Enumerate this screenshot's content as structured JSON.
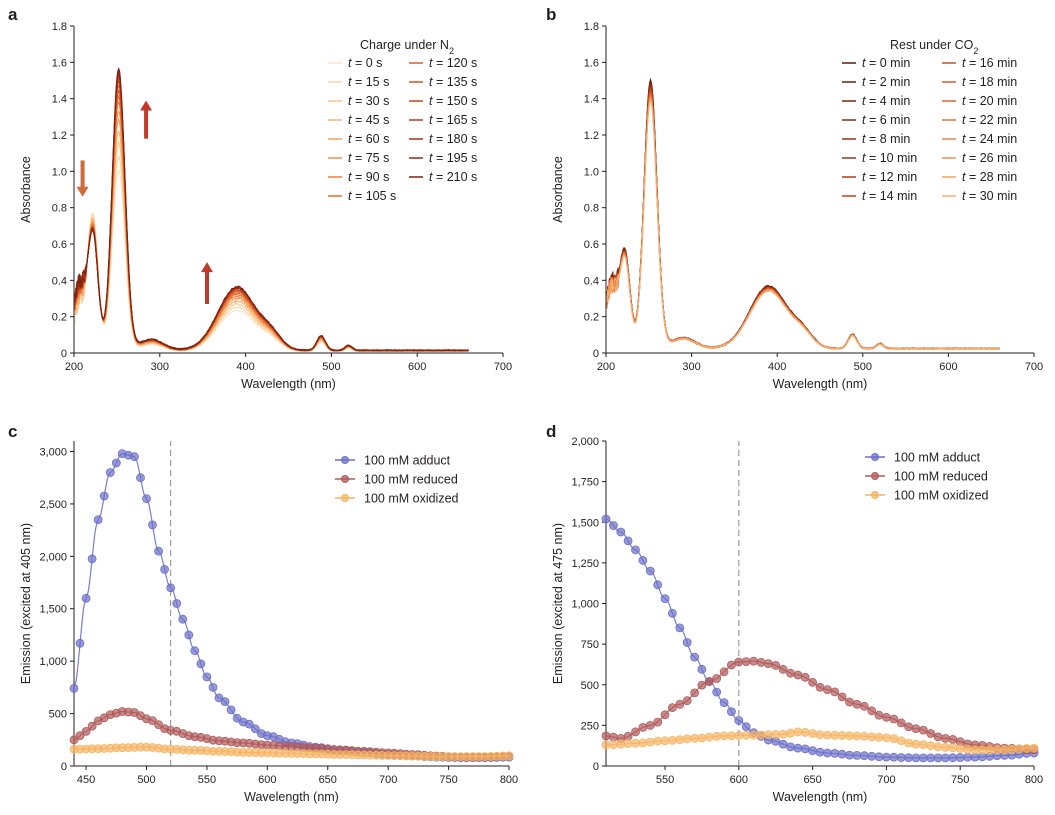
{
  "chart_data": [
    {
      "id": "a",
      "panel_label": "a",
      "type": "line",
      "title": "",
      "xlabel": "Wavelength (nm)",
      "ylabel": "Absorbance",
      "xlim": [
        200,
        700
      ],
      "ylim": [
        0,
        1.8
      ],
      "xticks": [
        200,
        300,
        400,
        500,
        600,
        700
      ],
      "yticks": [
        0,
        0.2,
        0.4,
        0.6,
        0.8,
        1.0,
        1.2,
        1.4,
        1.6,
        1.8
      ],
      "ytick_labels": [
        "0",
        "0.2",
        "0.4",
        "0.6",
        "0.8",
        "1.0",
        "1.2",
        "1.4",
        "1.6",
        "1.8"
      ],
      "legend_title": "Charge under N",
      "legend_title_sub": "2",
      "legend_time_symbol": "t",
      "legend_col1": [
        "= 0 s",
        "= 15 s",
        "= 30 s",
        "= 45 s",
        "= 60 s",
        "= 75 s",
        "= 90 s",
        "= 105 s"
      ],
      "legend_col2": [
        "= 120 s",
        "= 135 s",
        "= 150 s",
        "= 165 s",
        "= 180 s",
        "= 195 s",
        "= 210 s"
      ],
      "series_scale": [
        0.64,
        0.69,
        0.74,
        0.78,
        0.82,
        0.85,
        0.88,
        0.9,
        0.92,
        0.94,
        0.955,
        0.97,
        0.98,
        0.99,
        1.0
      ],
      "colors_light_to_dark": [
        "#fde6c8",
        "#fbd5a8",
        "#f9c48a",
        "#f7b26e",
        "#f4a059",
        "#f08f48",
        "#eb7d3b",
        "#e46e31",
        "#dc5f29",
        "#d05223",
        "#c3451e",
        "#b33a19",
        "#a23115",
        "#902912",
        "#7d2210"
      ],
      "peak_values": {
        "200": 0.38,
        "222": 0.65,
        "240": 0.5,
        "252": 1.55,
        "290": 0.1,
        "320": 0.02,
        "390": 0.38,
        "420": 0.2,
        "488": 0.08,
        "520": 0.04,
        "600": 0.01,
        "660": 0.0
      },
      "annotations": [
        {
          "kind": "arrow-down",
          "x_nm": 210,
          "y_from": 1.06,
          "y_to": 0.86,
          "color": "#cf6a3a"
        },
        {
          "kind": "arrow-up",
          "x_nm": 284,
          "y_from": 1.18,
          "y_to": 1.39,
          "color": "#c0392b"
        },
        {
          "kind": "arrow-up",
          "x_nm": 355,
          "y_from": 0.27,
          "y_to": 0.5,
          "color": "#c0392b"
        }
      ]
    },
    {
      "id": "b",
      "panel_label": "b",
      "type": "line",
      "title": "",
      "xlabel": "Wavelength (nm)",
      "ylabel": "Absorbance",
      "xlim": [
        200,
        700
      ],
      "ylim": [
        0,
        1.8
      ],
      "xticks": [
        200,
        300,
        400,
        500,
        600,
        700
      ],
      "yticks": [
        0,
        0.2,
        0.4,
        0.6,
        0.8,
        1.0,
        1.2,
        1.4,
        1.6,
        1.8
      ],
      "ytick_labels": [
        "0",
        "0.2",
        "0.4",
        "0.6",
        "0.8",
        "1.0",
        "1.2",
        "1.4",
        "1.6",
        "1.8"
      ],
      "legend_title": "Rest under CO",
      "legend_title_sub": "2",
      "legend_time_symbol": "t",
      "legend_col1": [
        "= 0 min",
        "= 2 min",
        "= 4 min",
        "= 6 min",
        "= 8 min",
        "= 10 min",
        "= 12 min",
        "= 14 min"
      ],
      "legend_col2": [
        "= 16 min",
        "= 18 min",
        "= 20 min",
        "= 22 min",
        "= 24 min",
        "= 26 min",
        "= 28 min",
        "= 30 min"
      ],
      "series_scale": [
        0.985,
        0.98,
        0.975,
        0.97,
        0.965,
        0.96,
        0.955,
        0.95,
        0.945,
        0.94,
        0.935,
        0.93,
        0.925,
        0.92,
        0.915,
        0.91
      ],
      "colors_dark_to_light": [
        "#5e1a0c",
        "#6a1f0e",
        "#772410",
        "#842a12",
        "#913014",
        "#9e3716",
        "#ab3e19",
        "#b8461d",
        "#c44f22",
        "#cf5a28",
        "#d9662f",
        "#e27338",
        "#ea8142",
        "#f0904f",
        "#f49f5f",
        "#f7ae71"
      ],
      "peak_values": {
        "200": 0.38,
        "222": 0.65,
        "240": 0.5,
        "252": 1.5,
        "290": 0.1,
        "320": 0.02,
        "390": 0.38,
        "420": 0.2,
        "488": 0.08,
        "520": 0.04,
        "600": 0.01,
        "660": 0.0
      }
    },
    {
      "id": "c",
      "panel_label": "c",
      "type": "scatter",
      "title": "",
      "xlabel": "Wavelength (nm)",
      "ylabel": "Emission (excited at 405 nm)",
      "xlim": [
        440,
        800
      ],
      "ylim": [
        0,
        3100
      ],
      "xticks": [
        450,
        500,
        550,
        600,
        650,
        700,
        750,
        800
      ],
      "yticks": [
        0,
        500,
        1000,
        1500,
        2000,
        2500,
        3000
      ],
      "ytick_labels": [
        "0",
        "500",
        "1,000",
        "1,500",
        "2,000",
        "2,500",
        "3,000"
      ],
      "dashed_line_x": 520,
      "series": [
        {
          "name": "100 mM adduct",
          "color": "#6b6fc8",
          "x": [
            440,
            450,
            460,
            470,
            480,
            490,
            500,
            510,
            520,
            530,
            540,
            550,
            560,
            580,
            600,
            620,
            640,
            660,
            680,
            700,
            720,
            740,
            760,
            780,
            800
          ],
          "y": [
            740,
            1600,
            2350,
            2800,
            2980,
            2950,
            2550,
            2050,
            1700,
            1400,
            1100,
            850,
            650,
            420,
            290,
            220,
            180,
            150,
            130,
            110,
            95,
            85,
            80,
            80,
            85
          ]
        },
        {
          "name": "100 mM reduced",
          "color": "#b05a5a",
          "x": [
            440,
            450,
            460,
            470,
            480,
            490,
            500,
            520,
            540,
            560,
            580,
            600,
            620,
            640,
            660,
            680,
            700,
            720,
            740,
            760,
            780,
            800
          ],
          "y": [
            250,
            330,
            430,
            490,
            520,
            510,
            450,
            340,
            280,
            240,
            220,
            200,
            185,
            170,
            155,
            140,
            125,
            110,
            95,
            85,
            85,
            95
          ]
        },
        {
          "name": "100 mM oxidized",
          "color": "#f6b463",
          "x": [
            440,
            460,
            480,
            500,
            520,
            540,
            560,
            580,
            600,
            620,
            640,
            660,
            680,
            700,
            720,
            740,
            760,
            780,
            800
          ],
          "y": [
            160,
            165,
            175,
            180,
            160,
            150,
            140,
            130,
            125,
            120,
            115,
            110,
            105,
            100,
            95,
            90,
            90,
            90,
            95
          ]
        }
      ]
    },
    {
      "id": "d",
      "panel_label": "d",
      "type": "scatter",
      "title": "",
      "xlabel": "Wavelength (nm)",
      "ylabel": "Emission (excited at 475 nm)",
      "xlim": [
        510,
        800
      ],
      "ylim": [
        0,
        2000
      ],
      "xticks": [
        550,
        600,
        650,
        700,
        750,
        800
      ],
      "yticks": [
        0,
        250,
        500,
        750,
        1000,
        1250,
        1500,
        1750,
        2000
      ],
      "ytick_labels": [
        "0",
        "250",
        "500",
        "750",
        "1,000",
        "1,250",
        "1,500",
        "1,750",
        "2,000"
      ],
      "dashed_line_x": 600,
      "series": [
        {
          "name": "100 mM adduct",
          "color": "#6b6fc8",
          "x": [
            510,
            520,
            530,
            540,
            550,
            560,
            570,
            580,
            590,
            600,
            610,
            620,
            640,
            660,
            680,
            700,
            720,
            740,
            760,
            780,
            800
          ],
          "y": [
            1520,
            1440,
            1330,
            1200,
            1030,
            850,
            670,
            520,
            390,
            280,
            205,
            160,
            110,
            80,
            65,
            55,
            50,
            50,
            55,
            65,
            80
          ]
        },
        {
          "name": "100 mM reduced",
          "color": "#b05a5a",
          "x": [
            510,
            520,
            540,
            560,
            580,
            600,
            610,
            620,
            640,
            660,
            680,
            700,
            720,
            740,
            760,
            780,
            800
          ],
          "y": [
            185,
            170,
            250,
            380,
            520,
            640,
            645,
            630,
            560,
            470,
            380,
            300,
            230,
            170,
            130,
            110,
            100
          ]
        },
        {
          "name": "100 mM oxidized",
          "color": "#f6b463",
          "x": [
            510,
            530,
            550,
            570,
            590,
            610,
            630,
            640,
            660,
            680,
            700,
            720,
            740,
            760,
            780,
            800
          ],
          "y": [
            130,
            140,
            155,
            170,
            185,
            190,
            195,
            210,
            190,
            185,
            175,
            135,
            115,
            100,
            100,
            110
          ]
        }
      ]
    }
  ]
}
